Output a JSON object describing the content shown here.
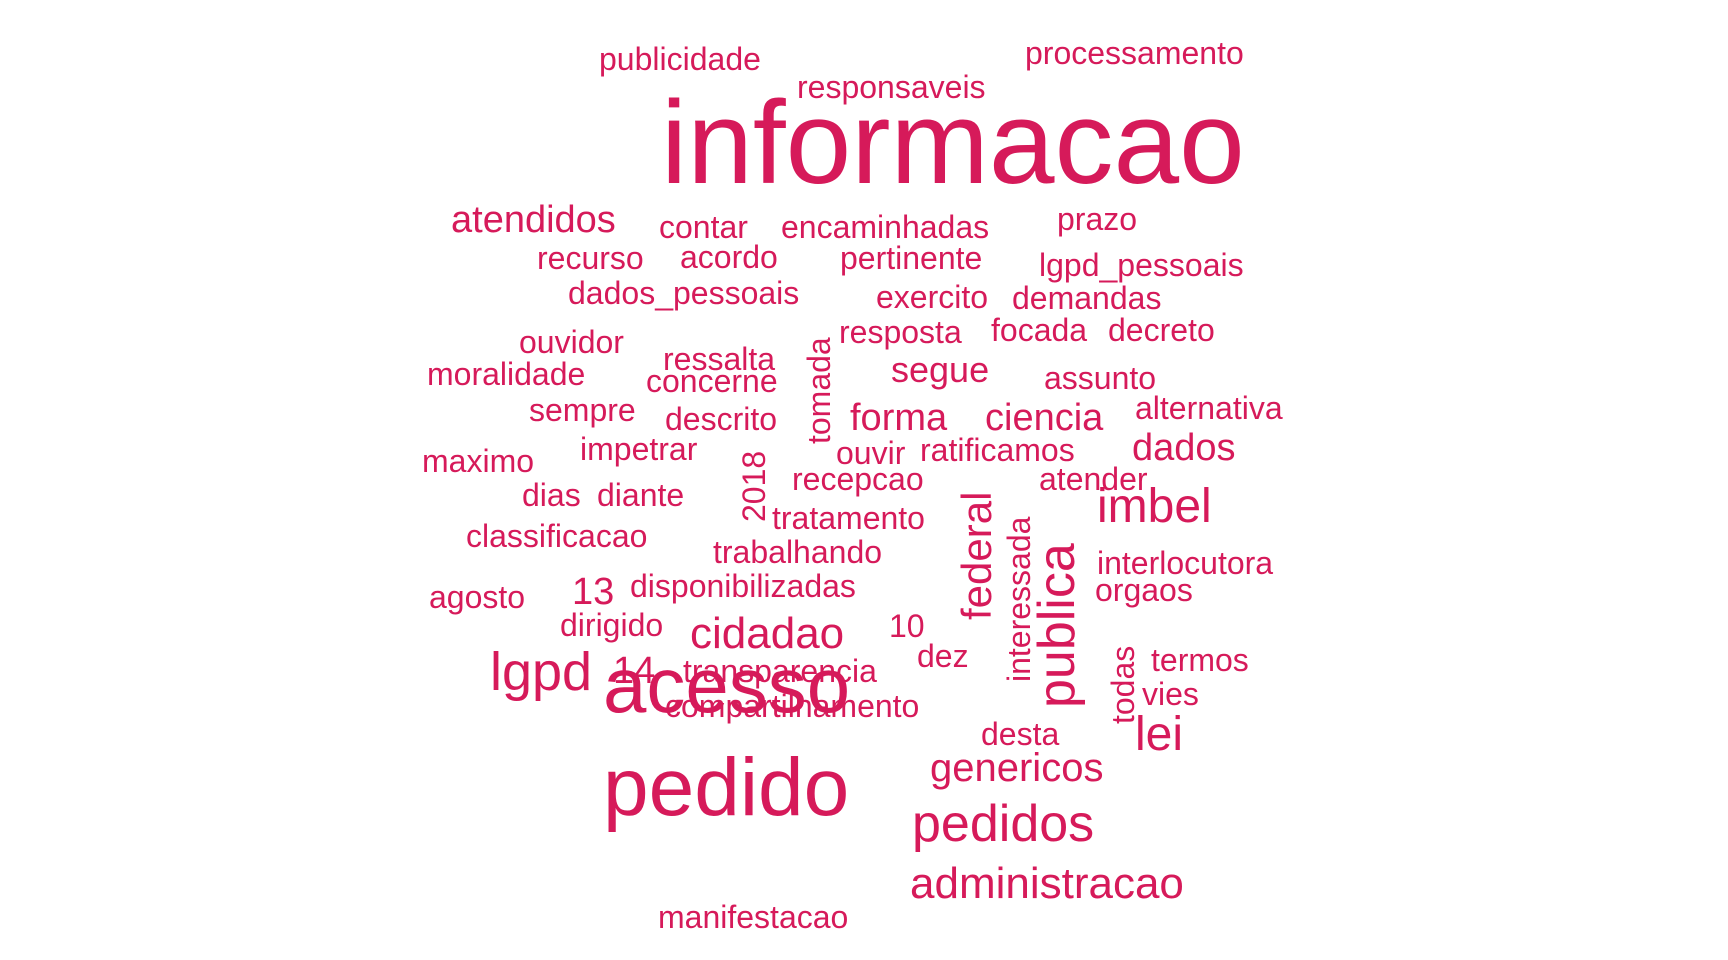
{
  "colors": {
    "word": "#d61a5a",
    "background": "#ffffff"
  },
  "words": [
    {
      "id": "informacao",
      "text": "informacao"
    },
    {
      "id": "acesso",
      "text": "acesso"
    },
    {
      "id": "pedido",
      "text": "pedido"
    },
    {
      "id": "pedidos",
      "text": "pedidos"
    },
    {
      "id": "administracao",
      "text": "administracao"
    },
    {
      "id": "publica",
      "text": "publica"
    },
    {
      "id": "lgpd",
      "text": "lgpd"
    },
    {
      "id": "imbel",
      "text": "imbel"
    },
    {
      "id": "lei",
      "text": "lei"
    },
    {
      "id": "cidadao",
      "text": "cidadao"
    },
    {
      "id": "genericos",
      "text": "genericos"
    },
    {
      "id": "federal",
      "text": "federal"
    },
    {
      "id": "forma",
      "text": "forma"
    },
    {
      "id": "ciencia",
      "text": "ciencia"
    },
    {
      "id": "dados",
      "text": "dados"
    },
    {
      "id": "atendidos",
      "text": "atendidos"
    },
    {
      "id": "segue",
      "text": "segue"
    },
    {
      "id": "publicidade",
      "text": "publicidade"
    },
    {
      "id": "processamento",
      "text": "processamento"
    },
    {
      "id": "responsaveis",
      "text": "responsaveis"
    },
    {
      "id": "contar",
      "text": "contar"
    },
    {
      "id": "encaminhadas",
      "text": "encaminhadas"
    },
    {
      "id": "prazo",
      "text": "prazo"
    },
    {
      "id": "recurso",
      "text": "recurso"
    },
    {
      "id": "acordo",
      "text": "acordo"
    },
    {
      "id": "pertinente",
      "text": "pertinente"
    },
    {
      "id": "lgpd_pessoais",
      "text": "lgpd_pessoais"
    },
    {
      "id": "dados_pessoais",
      "text": "dados_pessoais"
    },
    {
      "id": "exercito",
      "text": "exercito"
    },
    {
      "id": "demandas",
      "text": "demandas"
    },
    {
      "id": "ouvidor",
      "text": "ouvidor"
    },
    {
      "id": "tomada",
      "text": "tomada"
    },
    {
      "id": "resposta",
      "text": "resposta"
    },
    {
      "id": "focada",
      "text": "focada"
    },
    {
      "id": "decreto",
      "text": "decreto"
    },
    {
      "id": "ressalta",
      "text": "ressalta"
    },
    {
      "id": "moralidade",
      "text": "moralidade"
    },
    {
      "id": "concerne",
      "text": "concerne"
    },
    {
      "id": "assunto",
      "text": "assunto"
    },
    {
      "id": "sempre",
      "text": "sempre"
    },
    {
      "id": "descrito",
      "text": "descrito"
    },
    {
      "id": "alternativa",
      "text": "alternativa"
    },
    {
      "id": "maximo",
      "text": "maximo"
    },
    {
      "id": "impetrar",
      "text": "impetrar"
    },
    {
      "id": "ouvir",
      "text": "ouvir"
    },
    {
      "id": "ratificamos",
      "text": "ratificamos"
    },
    {
      "id": "2018",
      "text": "2018"
    },
    {
      "id": "dias",
      "text": "dias"
    },
    {
      "id": "diante",
      "text": "diante"
    },
    {
      "id": "recepcao",
      "text": "recepcao"
    },
    {
      "id": "atender",
      "text": "atender"
    },
    {
      "id": "tratamento",
      "text": "tratamento"
    },
    {
      "id": "interessada",
      "text": "interessada"
    },
    {
      "id": "classificacao",
      "text": "classificacao"
    },
    {
      "id": "trabalhando",
      "text": "trabalhando"
    },
    {
      "id": "interlocutora",
      "text": "interlocutora"
    },
    {
      "id": "13",
      "text": "13"
    },
    {
      "id": "disponibilizadas",
      "text": "disponibilizadas"
    },
    {
      "id": "orgaos",
      "text": "orgaos"
    },
    {
      "id": "agosto",
      "text": "agosto"
    },
    {
      "id": "dirigido",
      "text": "dirigido"
    },
    {
      "id": "10",
      "text": "10"
    },
    {
      "id": "14",
      "text": "14"
    },
    {
      "id": "dez",
      "text": "dez"
    },
    {
      "id": "todas",
      "text": "todas"
    },
    {
      "id": "termos",
      "text": "termos"
    },
    {
      "id": "transparencia",
      "text": "transparencia"
    },
    {
      "id": "vies",
      "text": "vies"
    },
    {
      "id": "compartilhamento",
      "text": "compartilhamento"
    },
    {
      "id": "desta",
      "text": "desta"
    },
    {
      "id": "manifestacao",
      "text": "manifestacao"
    }
  ]
}
